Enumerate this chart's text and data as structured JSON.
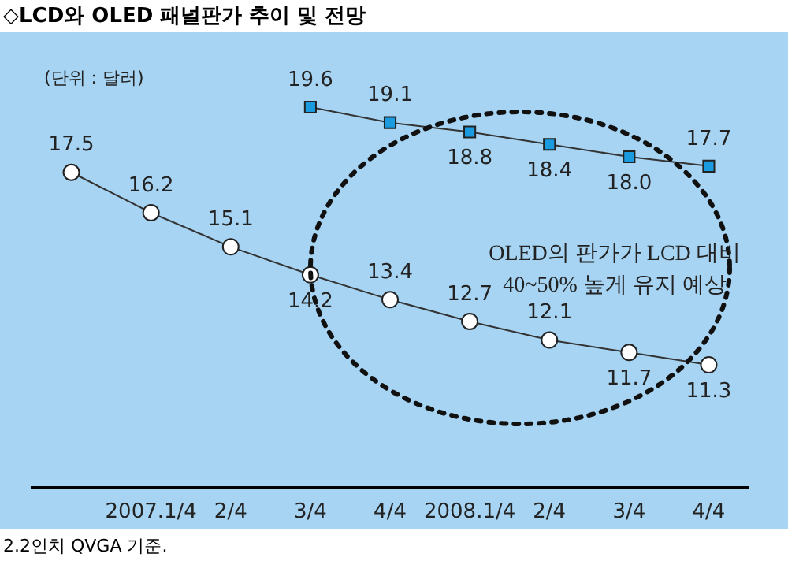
{
  "chart_data": {
    "type": "line",
    "title": "◇LCD와 OLED 패널판가 추이 및 전망",
    "categories": [
      null,
      "2007.1/4",
      "2/4",
      "3/4",
      "4/4",
      "2008.1/4",
      "2/4",
      "3/4",
      "4/4"
    ],
    "series": [
      {
        "color": "#ffffff",
        "marker": "circle",
        "values": [
          17.5,
          16.2,
          15.1,
          14.2,
          13.4,
          12.7,
          12.1,
          11.7,
          11.3
        ],
        "value_labels": [
          "17.5",
          "16.2",
          "15.1",
          "14.2",
          "13.4",
          "12.7",
          "12.1",
          "11.7",
          "11.3"
        ]
      },
      {
        "color": "#1a9be0",
        "marker": "square",
        "values": [
          null,
          null,
          null,
          19.6,
          19.1,
          18.8,
          18.4,
          18.0,
          17.7
        ],
        "value_labels": [
          null,
          null,
          null,
          "19.6",
          "19.1",
          "18.8",
          "18.4",
          "18.0",
          "17.7"
        ]
      }
    ],
    "grid": false,
    "legend": false,
    "tick_labels": "x",
    "annotations": [
      "(단위 : 달러)",
      "OLED의 판가가 LCD 대비 40~50% 높게 유지 예상",
      "2.2인치 QVGA 기준."
    ]
  }
}
